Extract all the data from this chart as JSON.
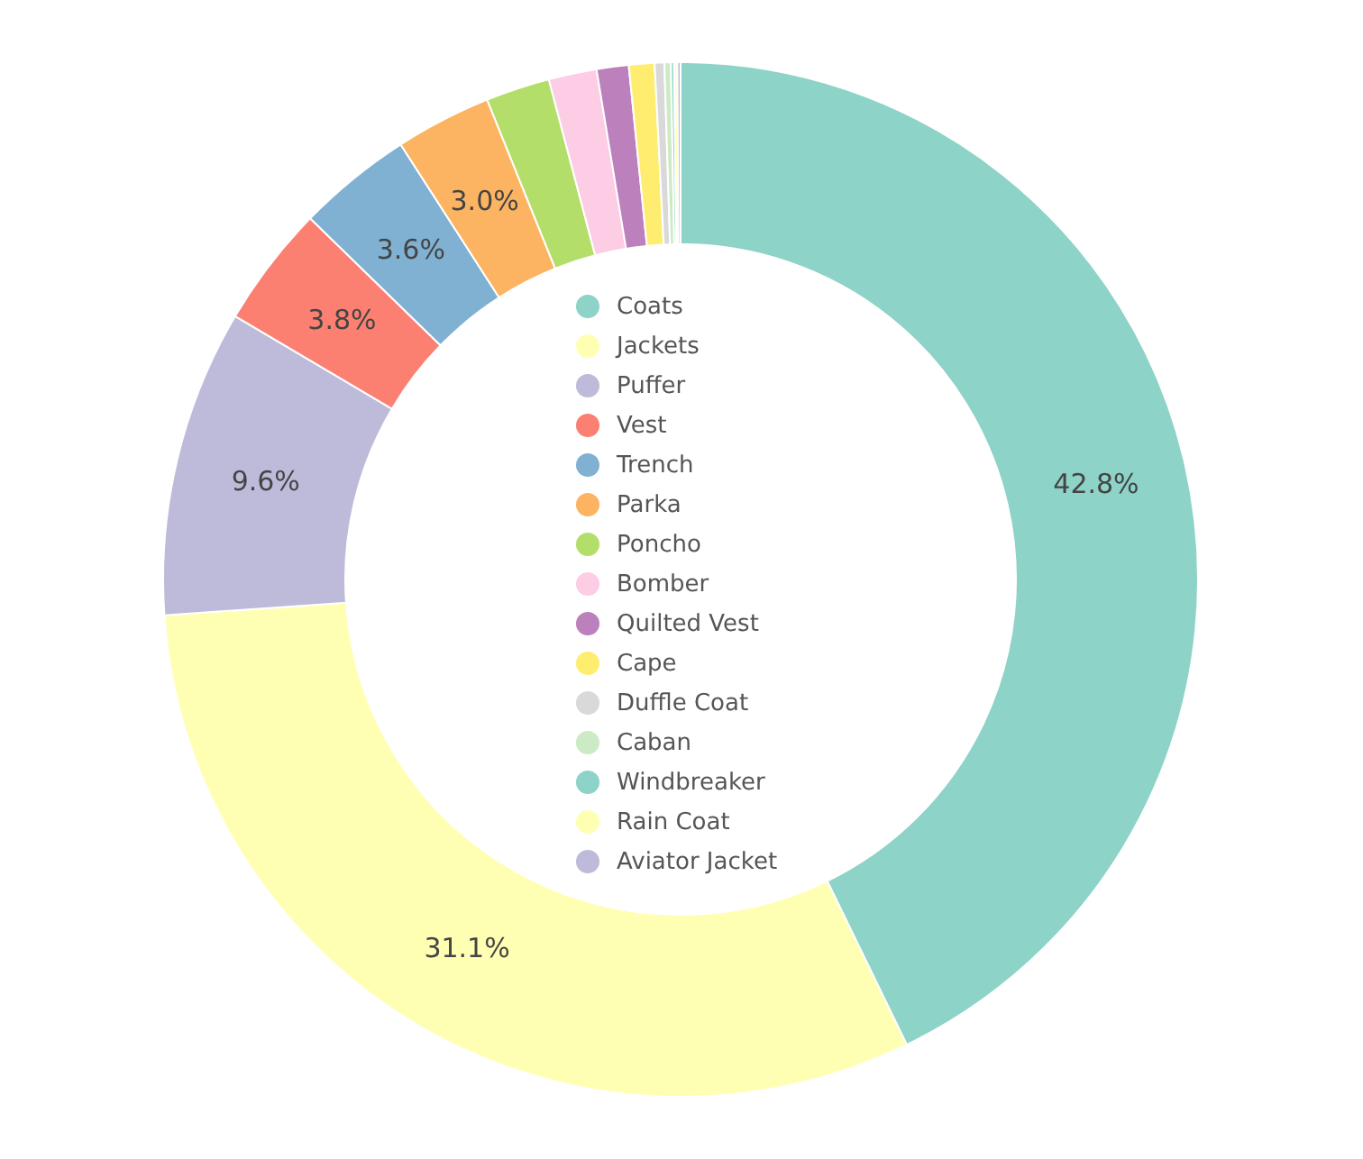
{
  "chart_data": {
    "type": "donut",
    "categories": [
      "Coats",
      "Jackets",
      "Puffer",
      "Vest",
      "Trench",
      "Parka",
      "Poncho",
      "Bomber",
      "Quilted Vest",
      "Cape",
      "Duffle Coat",
      "Caban",
      "Windbreaker",
      "Rain Coat",
      "Aviator Jacket"
    ],
    "values": [
      42.8,
      31.1,
      9.6,
      3.8,
      3.6,
      3.0,
      2.0,
      1.5,
      1.0,
      0.8,
      0.3,
      0.2,
      0.1,
      0.1,
      0.1
    ],
    "colors": [
      "#8dd3c7",
      "#ffffb3",
      "#bebada",
      "#fb8072",
      "#80b1d3",
      "#fdb462",
      "#b3de69",
      "#fccde5",
      "#bc80bd",
      "#ffed6f",
      "#d9d9d9",
      "#ccebc5",
      "#8dd3c7",
      "#ffffb3",
      "#bebada"
    ],
    "value_labels": [
      "42.8%",
      "31.1%",
      "9.6%",
      "3.8%",
      "3.6%",
      "3.0%",
      null,
      null,
      null,
      null,
      null,
      null,
      null,
      null,
      null
    ],
    "legend": "center"
  }
}
